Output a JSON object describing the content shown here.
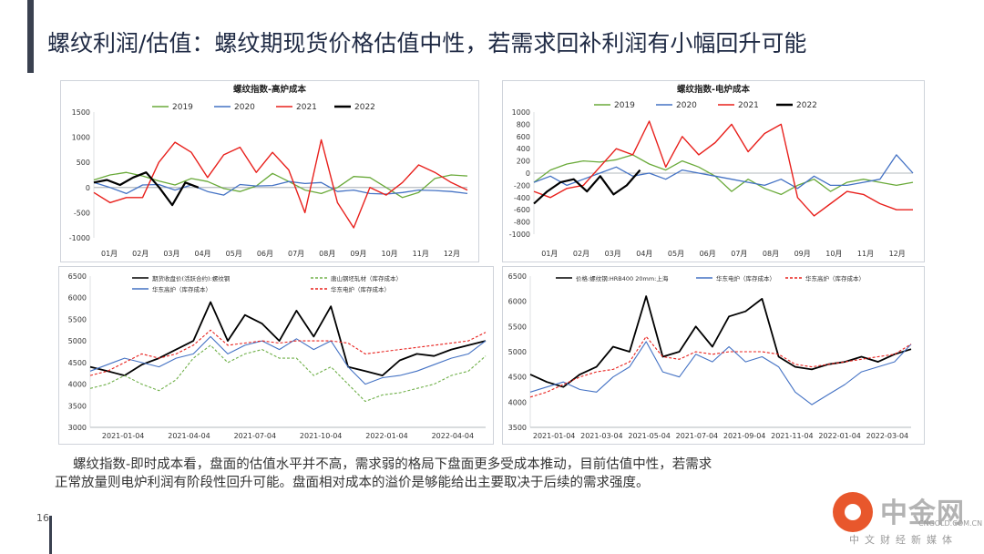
{
  "title": "螺纹利润/估值：螺纹期现货价格估值中性，若需求回补利润有小幅回升可能",
  "caption": {
    "line1": "螺纹指数-即时成本看，盘面的估值水平并不高，需求弱的格局下盘面更多受成本推动，目前估值中性，若需求",
    "line2": "正常放量则电炉利润有阶段性回升可能。盘面相对成本的溢价是够能给出主要取决于后续的需求强度。"
  },
  "page_number": "16",
  "logo": {
    "name": "中金网",
    "url": "CNGOLD.COM.CN",
    "tagline": "中文财经新媒体",
    "color": "#e8572c"
  },
  "chart_data": [
    {
      "id": "bf",
      "type": "line",
      "title": "螺纹指数-高炉成本",
      "x_labels": [
        "01月",
        "02月",
        "03月",
        "04月",
        "05月",
        "06月",
        "07月",
        "08月",
        "09月",
        "10月",
        "11月",
        "12月"
      ],
      "ylim": [
        -1000,
        1500
      ],
      "yticks": [
        -1000,
        -500,
        0,
        500,
        1000,
        1500
      ],
      "legend_position": "top",
      "series": [
        {
          "name": "2019",
          "color": "#6aaa3a",
          "width": 1.3,
          "values": [
            150,
            250,
            300,
            230,
            130,
            50,
            180,
            120,
            -20,
            -80,
            30,
            280,
            120,
            -50,
            -120,
            0,
            220,
            200,
            0,
            -200,
            -100,
            180,
            250,
            230
          ],
          "x_end": 1
        },
        {
          "name": "2020",
          "color": "#4472c4",
          "width": 1.3,
          "values": [
            100,
            0,
            -120,
            50,
            60,
            -50,
            50,
            -80,
            -150,
            60,
            30,
            40,
            120,
            80,
            100,
            -80,
            -50,
            -120,
            -130,
            -100,
            -50,
            -60,
            -80,
            -120
          ],
          "x_end": 1
        },
        {
          "name": "2021",
          "color": "#e8201c",
          "width": 1.4,
          "values": [
            -100,
            -300,
            -200,
            -200,
            500,
            900,
            700,
            200,
            650,
            800,
            300,
            700,
            350,
            -500,
            950,
            -300,
            -800,
            0,
            -150,
            100,
            450,
            300,
            100,
            -50
          ],
          "x_end": 1
        },
        {
          "name": "2022",
          "color": "#000000",
          "width": 2.2,
          "values": [
            100,
            150,
            50,
            200,
            300,
            0,
            -350,
            100,
            0
          ],
          "x_end": 0.28
        }
      ]
    },
    {
      "id": "eaf",
      "type": "line",
      "title": "螺纹指数-电炉成本",
      "x_labels": [
        "01月",
        "02月",
        "03月",
        "04月",
        "05月",
        "06月",
        "07月",
        "08月",
        "09月",
        "10月",
        "11月",
        "12月"
      ],
      "ylim": [
        -1000,
        1000
      ],
      "yticks": [
        -1000,
        -800,
        -600,
        -400,
        -200,
        0,
        200,
        400,
        600,
        800,
        1000
      ],
      "legend_position": "top",
      "series": [
        {
          "name": "2019",
          "color": "#6aaa3a",
          "width": 1.3,
          "values": [
            -150,
            50,
            150,
            200,
            180,
            220,
            300,
            150,
            50,
            200,
            100,
            -50,
            -300,
            -100,
            -250,
            -350,
            -200,
            -100,
            -300,
            -150,
            -100,
            -150,
            -200,
            -150
          ],
          "x_end": 1
        },
        {
          "name": "2020",
          "color": "#4472c4",
          "width": 1.3,
          "values": [
            -150,
            -50,
            -200,
            -100,
            0,
            100,
            -50,
            0,
            -100,
            50,
            0,
            -50,
            -100,
            -150,
            -200,
            -100,
            -250,
            -50,
            -200,
            -200,
            -150,
            -100,
            300,
            0
          ],
          "x_end": 1
        },
        {
          "name": "2021",
          "color": "#e8201c",
          "width": 1.4,
          "values": [
            -300,
            -400,
            -250,
            -200,
            100,
            400,
            300,
            850,
            100,
            600,
            300,
            500,
            800,
            350,
            650,
            800,
            -400,
            -700,
            -500,
            -300,
            -350,
            -500,
            -600,
            -600
          ],
          "x_end": 1
        },
        {
          "name": "2022",
          "color": "#000000",
          "width": 2.2,
          "values": [
            -500,
            -300,
            -150,
            -100,
            -300,
            -50,
            -350,
            -200,
            50
          ],
          "x_end": 0.28
        }
      ]
    },
    {
      "id": "bf_cost",
      "type": "line",
      "x_labels": [
        "2021-01-04",
        "2021-04-04",
        "2021-07-04",
        "2021-10-04",
        "2022-01-04",
        "2022-04-04"
      ],
      "ylim": [
        3000,
        6500
      ],
      "yticks": [
        3000,
        3500,
        4000,
        4500,
        5000,
        5500,
        6000,
        6500
      ],
      "legend_position": "top",
      "series": [
        {
          "name": "期货收盘价(活跃合约):螺纹钢",
          "color": "#000000",
          "width": 1.8,
          "dash": "",
          "values": [
            4400,
            4300,
            4200,
            4450,
            4600,
            4800,
            5000,
            5900,
            5000,
            5600,
            5400,
            5000,
            5700,
            5100,
            5800,
            4400,
            4300,
            4200,
            4550,
            4700,
            4650,
            4800,
            4900,
            5000
          ]
        },
        {
          "name": "唐山钢坯轧材（库存成本）",
          "color": "#70b04a",
          "width": 1.1,
          "dash": "3,2",
          "values": [
            3900,
            4000,
            4200,
            4000,
            3850,
            4100,
            4600,
            4900,
            4500,
            4700,
            4800,
            4600,
            4600,
            4200,
            4400,
            4000,
            3600,
            3750,
            3800,
            3900,
            4000,
            4200,
            4300,
            4650
          ]
        },
        {
          "name": "华东高炉（库存成本）",
          "color": "#4472c4",
          "width": 1.1,
          "dash": "",
          "values": [
            4300,
            4450,
            4600,
            4500,
            4400,
            4600,
            4700,
            5100,
            4700,
            4900,
            5000,
            4800,
            5050,
            4800,
            5000,
            4400,
            4000,
            4150,
            4200,
            4300,
            4450,
            4600,
            4700,
            5000
          ]
        },
        {
          "name": "华东电炉（库存成本）",
          "color": "#e8201c",
          "width": 1.1,
          "dash": "3,2",
          "values": [
            4200,
            4300,
            4500,
            4700,
            4600,
            4700,
            4900,
            5250,
            4900,
            4950,
            5000,
            4950,
            5000,
            5000,
            5000,
            4950,
            4700,
            4750,
            4800,
            4850,
            4900,
            4950,
            5000,
            5200
          ]
        }
      ]
    },
    {
      "id": "eaf_cost",
      "type": "line",
      "x_labels": [
        "2021-01-04",
        "2021-03-04",
        "2021-05-04",
        "2021-07-04",
        "2021-09-04",
        "2021-11-04",
        "2022-01-04",
        "2022-03-04"
      ],
      "ylim": [
        3500,
        6500
      ],
      "yticks": [
        3500,
        4000,
        4500,
        5000,
        5500,
        6000,
        6500
      ],
      "legend_position": "top",
      "series": [
        {
          "name": "价格:螺纹钢:HRB400 20mm:上海",
          "color": "#000000",
          "width": 1.8,
          "dash": "",
          "values": [
            4550,
            4400,
            4300,
            4550,
            4700,
            5100,
            5000,
            6100,
            4900,
            5000,
            5500,
            5100,
            5700,
            5800,
            6050,
            4900,
            4700,
            4650,
            4750,
            4800,
            4900,
            4800,
            4950,
            5050
          ]
        },
        {
          "name": "华东电炉（库存成本）",
          "color": "#4472c4",
          "width": 1.1,
          "dash": "",
          "values": [
            4200,
            4300,
            4400,
            4250,
            4200,
            4500,
            4700,
            5200,
            4600,
            4500,
            4950,
            4800,
            5100,
            4800,
            4900,
            4700,
            4200,
            3950,
            4150,
            4350,
            4600,
            4700,
            4800,
            5150
          ]
        },
        {
          "name": "华东高炉（库存成本）",
          "color": "#e8201c",
          "width": 1.1,
          "dash": "3,2",
          "values": [
            4100,
            4200,
            4350,
            4500,
            4600,
            4650,
            4800,
            5300,
            4900,
            4850,
            5000,
            4950,
            5000,
            5000,
            5000,
            4950,
            4750,
            4700,
            4750,
            4800,
            4850,
            4900,
            4950,
            5150
          ]
        }
      ]
    }
  ]
}
